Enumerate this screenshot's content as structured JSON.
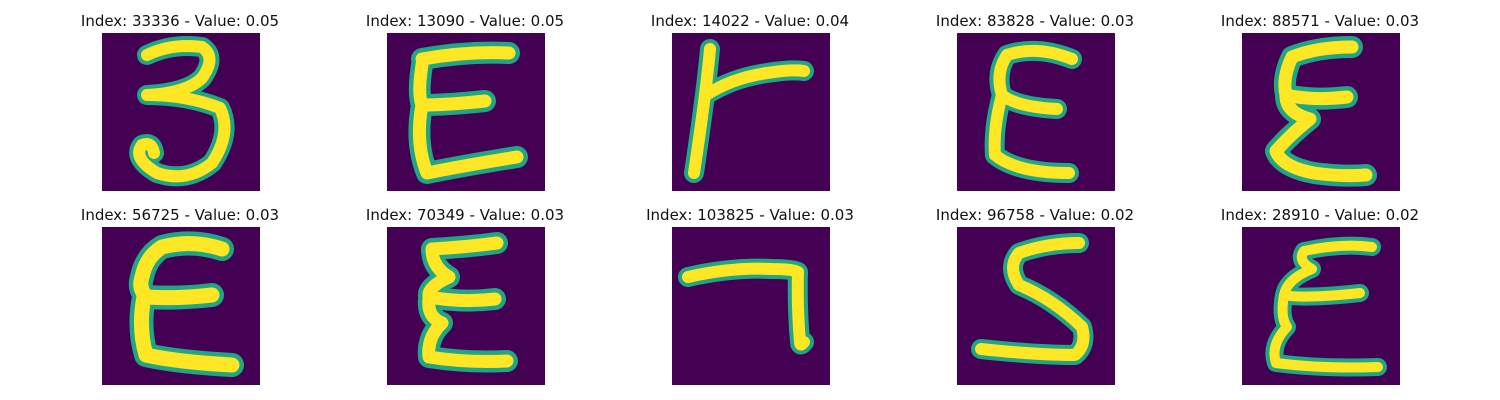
{
  "colors": {
    "background": "#440154",
    "stroke_edge": "#21a585",
    "stroke_core": "#fde725"
  },
  "panels": [
    {
      "title": "Index: 33336 - Value: 0.05",
      "glyph": "glyph-3-shape-icon"
    },
    {
      "title": "Index: 13090 - Value: 0.05",
      "glyph": "glyph-epsilon-shape-icon"
    },
    {
      "title": "Index: 14022 - Value: 0.04",
      "glyph": "glyph-r-shape-icon"
    },
    {
      "title": "Index: 83828 - Value: 0.03",
      "glyph": "glyph-epsilon-shape-icon"
    },
    {
      "title": "Index: 88571 - Value: 0.03",
      "glyph": "glyph-epsilon-shape-icon"
    },
    {
      "title": "Index: 56725 - Value: 0.03",
      "glyph": "glyph-epsilon-shape-icon"
    },
    {
      "title": "Index: 70349 - Value: 0.03",
      "glyph": "glyph-epsilon-shape-icon"
    },
    {
      "title": "Index: 103825 - Value: 0.03",
      "glyph": "glyph-7-shape-icon"
    },
    {
      "title": "Index: 96758 - Value: 0.02",
      "glyph": "glyph-5-shape-icon"
    },
    {
      "title": "Index: 28910 - Value: 0.02",
      "glyph": "glyph-epsilon-shape-icon"
    }
  ]
}
